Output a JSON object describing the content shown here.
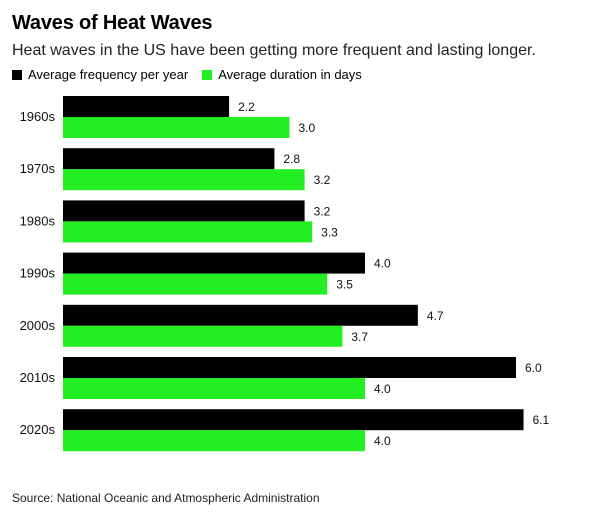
{
  "title": "Waves of Heat Waves",
  "subtitle": "Heat waves in the US have been getting more frequent and lasting longer.",
  "source": "Source: National Oceanic and Atmospheric Administration",
  "colors": {
    "frequency": "#000000",
    "duration": "#22ee22"
  },
  "chart_data": {
    "type": "bar",
    "orientation": "horizontal",
    "categories": [
      "1960s",
      "1970s",
      "1980s",
      "1990s",
      "2000s",
      "2010s",
      "2020s"
    ],
    "series": [
      {
        "name": "Average frequency per year",
        "values": [
          2.2,
          2.8,
          3.2,
          4.0,
          4.7,
          6.0,
          6.1
        ],
        "labels": [
          "2.2",
          "2.8",
          "3.2",
          "4.0",
          "4.7",
          "6.0",
          "6.1"
        ]
      },
      {
        "name": "Average duration in days",
        "values": [
          3.0,
          3.2,
          3.3,
          3.5,
          3.7,
          4.0,
          4.0
        ],
        "labels": [
          "3.0",
          "3.2",
          "3.3",
          "3.5",
          "3.7",
          "4.0",
          "4.0"
        ]
      }
    ],
    "xlim": [
      0,
      6.1
    ],
    "legend": "top-left",
    "grid": false
  }
}
